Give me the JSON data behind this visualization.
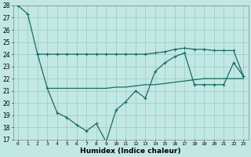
{
  "xlabel": "Humidex (Indice chaleur)",
  "background_color": "#c2e8e4",
  "grid_color": "#9dceca",
  "line_color": "#1a6b65",
  "x_ticks": [
    0,
    1,
    2,
    3,
    4,
    5,
    6,
    7,
    8,
    9,
    10,
    11,
    12,
    13,
    14,
    15,
    16,
    17,
    18,
    19,
    20,
    21,
    22,
    23
  ],
  "ylim": [
    17,
    28
  ],
  "yticks": [
    17,
    18,
    19,
    20,
    21,
    22,
    23,
    24,
    25,
    26,
    27,
    28
  ],
  "line_flat_top_x": [
    2,
    3,
    4,
    5,
    6,
    7,
    8,
    9,
    10,
    11,
    12,
    13,
    14,
    15,
    16,
    17,
    18,
    19,
    20,
    21,
    22,
    23
  ],
  "line_flat_top_y": [
    24.0,
    24.0,
    24.0,
    24.0,
    24.0,
    24.0,
    24.0,
    24.0,
    24.0,
    24.0,
    24.0,
    24.0,
    24.1,
    24.2,
    24.4,
    24.5,
    24.4,
    24.4,
    24.3,
    24.3,
    24.3,
    22.2
  ],
  "line_wavy_x": [
    0,
    1,
    2,
    3,
    4,
    5,
    6,
    7,
    8,
    9,
    10,
    11,
    12,
    13,
    14,
    15,
    16,
    17,
    18,
    19,
    20,
    21,
    22,
    23
  ],
  "line_wavy_y": [
    28.0,
    27.3,
    24.0,
    21.2,
    19.2,
    18.8,
    18.2,
    17.7,
    18.3,
    16.8,
    19.4,
    20.1,
    21.0,
    20.4,
    22.6,
    23.3,
    23.8,
    24.1,
    21.5,
    21.5,
    21.5,
    21.5,
    23.3,
    22.2
  ],
  "line_flat_bot_x": [
    3,
    4,
    5,
    6,
    7,
    8,
    9,
    10,
    11,
    12,
    13,
    14,
    15,
    16,
    17,
    18,
    19,
    20,
    21,
    22,
    23
  ],
  "line_flat_bot_y": [
    21.2,
    21.2,
    21.2,
    21.2,
    21.2,
    21.2,
    21.2,
    21.3,
    21.3,
    21.4,
    21.5,
    21.5,
    21.6,
    21.7,
    21.8,
    21.9,
    22.0,
    22.0,
    22.0,
    22.0,
    22.0
  ]
}
